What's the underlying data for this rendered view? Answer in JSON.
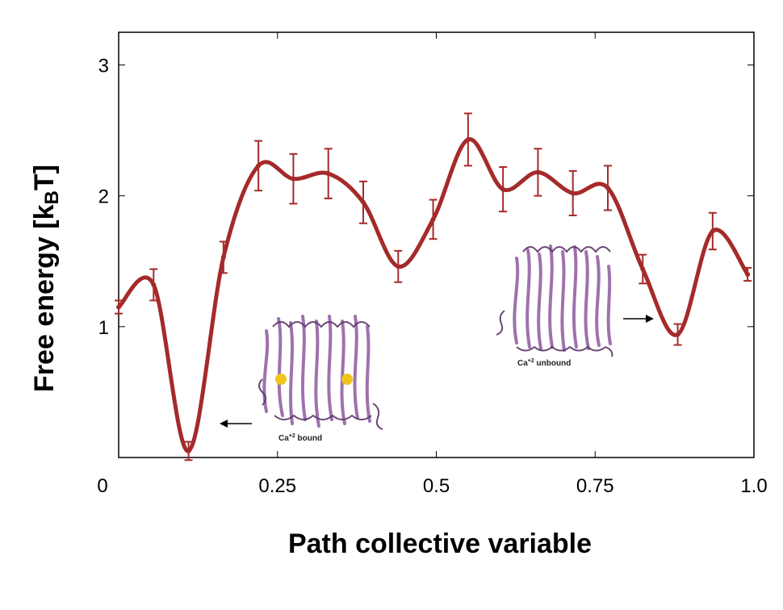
{
  "chart_data": {
    "type": "line",
    "xlabel": "Path collective variable",
    "ylabel_main": "Free energy [k",
    "ylabel_sub": "B",
    "ylabel_end": "T]",
    "xlim": [
      0,
      1.0
    ],
    "ylim": [
      0,
      3.25
    ],
    "x_ticks": [
      0,
      0.25,
      0.5,
      0.75,
      1.0
    ],
    "x_tick_labels": [
      "0",
      "0.25",
      "0.5",
      "0.75",
      "1.0"
    ],
    "y_ticks": [
      1,
      2,
      3
    ],
    "y_tick_labels": [
      "1",
      "2",
      "3"
    ],
    "grid": false,
    "line_color": "#a52a2a",
    "series": [
      {
        "x": [
          0.0,
          0.055,
          0.11,
          0.165,
          0.22,
          0.275,
          0.33,
          0.385,
          0.44,
          0.495,
          0.55,
          0.605,
          0.66,
          0.715,
          0.77,
          0.825,
          0.88,
          0.935,
          0.99
        ],
        "y": [
          1.15,
          1.32,
          0.05,
          1.53,
          2.23,
          2.13,
          2.17,
          1.95,
          1.46,
          1.82,
          2.43,
          2.05,
          2.18,
          2.02,
          2.06,
          1.44,
          0.94,
          1.73,
          1.4
        ],
        "err": [
          0.05,
          0.12,
          0.07,
          0.12,
          0.19,
          0.19,
          0.19,
          0.16,
          0.12,
          0.15,
          0.2,
          0.17,
          0.18,
          0.17,
          0.17,
          0.11,
          0.08,
          0.14,
          0.05
        ]
      }
    ],
    "annotations": {
      "bound_caption_base": "Ca",
      "bound_caption_sup": "+2",
      "bound_caption_rest": " bound",
      "unbound_caption_base": "Ca",
      "unbound_caption_sup": "+2",
      "unbound_caption_rest": " unbound"
    }
  }
}
